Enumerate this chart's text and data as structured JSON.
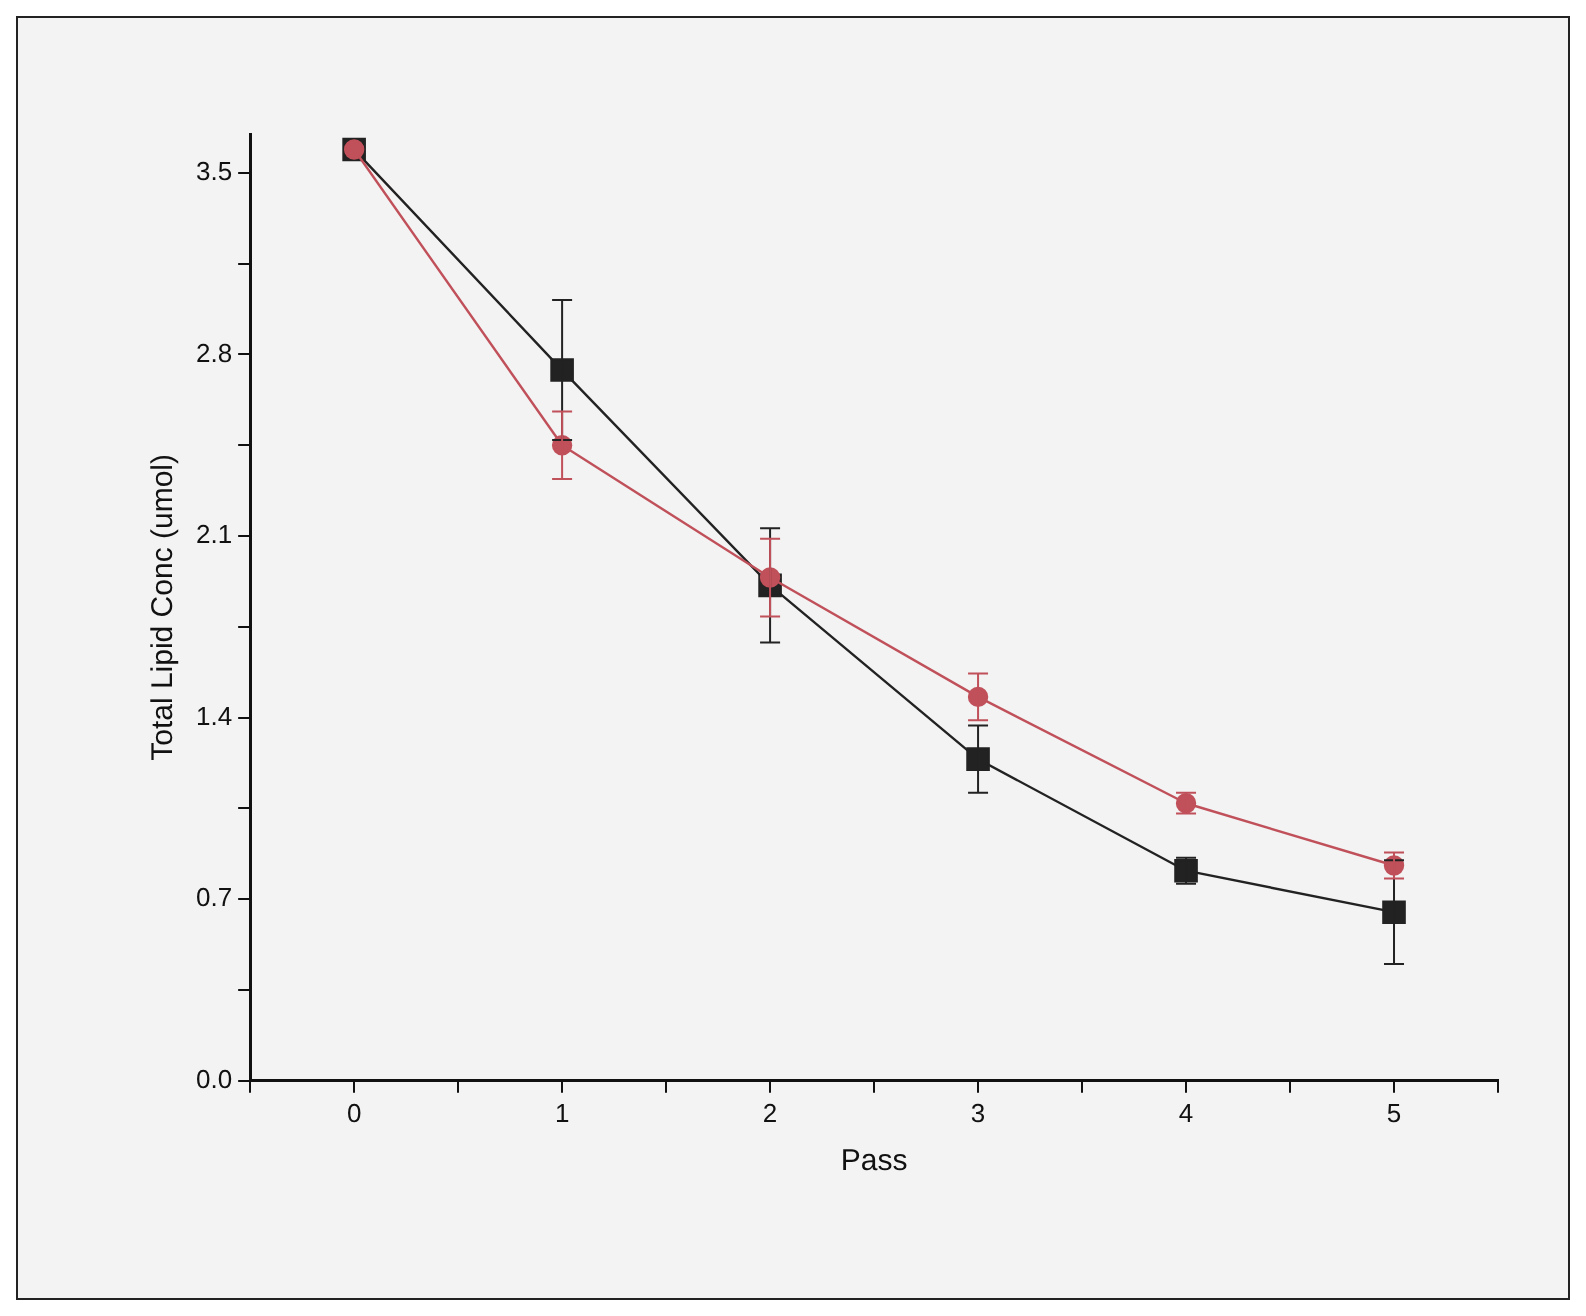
{
  "chart_data": {
    "type": "line",
    "xlabel": "Pass",
    "ylabel": "Total Lipid Conc (umol)",
    "x": [
      0,
      1,
      2,
      3,
      4,
      5
    ],
    "xlim": [
      -0.5,
      5.5
    ],
    "xticks": [
      {
        "value": -0.5,
        "label": null
      },
      0,
      {
        "value": 0.5,
        "label": null
      },
      1,
      {
        "value": 1.5,
        "label": null
      },
      2,
      {
        "value": 2.5,
        "label": null
      },
      3,
      {
        "value": 3.5,
        "label": null
      },
      4,
      {
        "value": 4.5,
        "label": null
      },
      5,
      {
        "value": 5.5,
        "label": null
      }
    ],
    "ylim": [
      0,
      3.65
    ],
    "yticks": [
      {
        "value": 0,
        "label": "0.0"
      },
      {
        "value": 0.35,
        "label": null
      },
      0.7,
      {
        "value": 1.05,
        "label": null
      },
      1.4,
      {
        "value": 1.75,
        "label": null
      },
      2.1,
      {
        "value": 2.45,
        "label": null
      },
      2.8,
      {
        "value": 3.15,
        "label": null
      },
      3.5
    ],
    "grid": false,
    "legend": false,
    "line_style": "solid",
    "series": [
      {
        "color": "#222222",
        "marker": "square",
        "values": [
          3.59,
          2.74,
          1.91,
          1.24,
          0.81,
          0.65
        ],
        "errors": [
          null,
          0.27,
          0.22,
          0.13,
          0.05,
          0.2
        ]
      },
      {
        "color": "#c0505a",
        "marker": "circle",
        "values": [
          3.59,
          2.45,
          1.94,
          1.48,
          1.07,
          0.83
        ],
        "errors": [
          null,
          0.13,
          0.15,
          0.09,
          0.04,
          0.05
        ]
      }
    ]
  }
}
